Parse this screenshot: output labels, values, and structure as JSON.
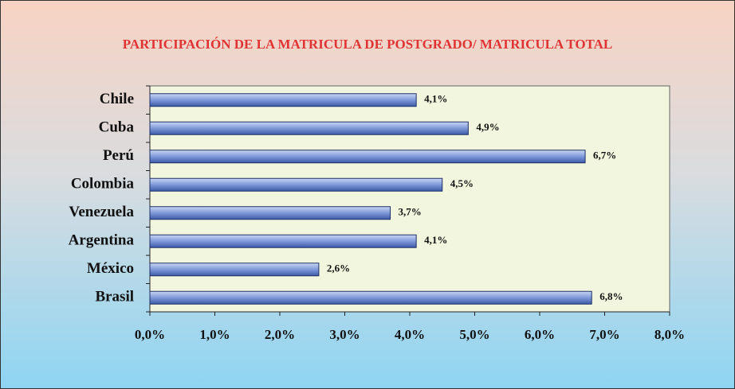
{
  "chart_data": {
    "type": "bar",
    "orientation": "horizontal",
    "title": "PARTICIPACIÓN DE LA MATRICULA DE POSTGRADO/ MATRICULA TOTAL",
    "categories": [
      "Chile",
      "Cuba",
      "Perú",
      "Colombia",
      "Venezuela",
      "Argentina",
      "México",
      "Brasil"
    ],
    "values": [
      4.1,
      4.9,
      6.7,
      4.5,
      3.7,
      4.1,
      2.6,
      6.8
    ],
    "value_labels": [
      "4,1%",
      "4,9%",
      "6,7%",
      "4,5%",
      "3,7%",
      "4,1%",
      "2,6%",
      "6,8%"
    ],
    "color": "#7f98d8",
    "xlim": [
      0,
      8
    ],
    "xticks": [
      {
        "value": 0,
        "label": "0,0%"
      },
      {
        "value": 1,
        "label": "1,0%"
      },
      {
        "value": 2,
        "label": "2,0%"
      },
      {
        "value": 3,
        "label": "3,0%"
      },
      {
        "value": 4,
        "label": "4,0%"
      },
      {
        "value": 5,
        "label": "5,0%"
      },
      {
        "value": 6,
        "label": "6,0%"
      },
      {
        "value": 7,
        "label": "7,0%"
      },
      {
        "value": 8,
        "label": "8,0%"
      }
    ]
  }
}
